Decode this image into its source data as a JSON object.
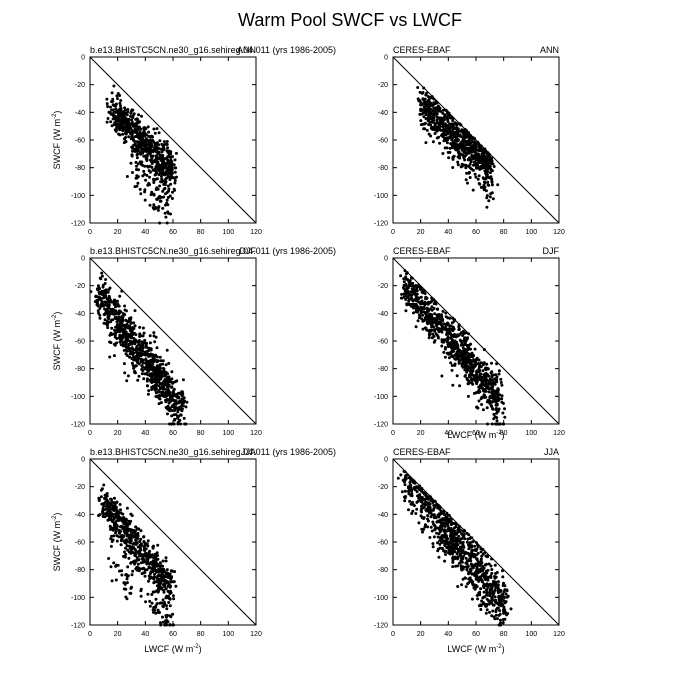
{
  "figure": {
    "title": "Warm Pool SWCF vs LWCF"
  },
  "chart_data": [
    {
      "type": "scatter",
      "column": 0,
      "row": 0,
      "left_title": "b.e13.BHISTC5CN.ne30_g16.sehireg.04.011 (yrs 1986-2005)",
      "right_title": "ANN",
      "xlabel": "",
      "ylabel": "SWCF (W m-2)",
      "xlim": [
        0,
        120
      ],
      "ylim": [
        -120,
        0
      ],
      "xticks": [
        0,
        20,
        40,
        60,
        80,
        100,
        120
      ],
      "yticks": [
        0,
        -20,
        -40,
        -60,
        -80,
        -100,
        -120
      ],
      "reference_line": [
        [
          0,
          0
        ],
        [
          120,
          -120
        ]
      ],
      "clusters": [
        {
          "x0": 16,
          "x1": 60,
          "ya": -39,
          "yb": -84,
          "spread": 7,
          "n": 650
        },
        {
          "x0": 30,
          "x1": 58,
          "ya": -78,
          "yb": -110,
          "spread": 8,
          "n": 90
        }
      ]
    },
    {
      "type": "scatter",
      "column": 1,
      "row": 0,
      "left_title": "CERES-EBAF",
      "right_title": "ANN",
      "xlabel": "",
      "ylabel": "",
      "xlim": [
        0,
        120
      ],
      "ylim": [
        -120,
        0
      ],
      "xticks": [
        0,
        20,
        40,
        60,
        80,
        100,
        120
      ],
      "yticks": [
        0,
        -20,
        -40,
        -60,
        -80,
        -100,
        -120
      ],
      "reference_line": [
        [
          0,
          0
        ],
        [
          120,
          -120
        ]
      ],
      "clusters": [
        {
          "x0": 20,
          "x1": 70,
          "ya": -34,
          "yb": -78,
          "spread": 7,
          "n": 600
        },
        {
          "x0": 40,
          "x1": 72,
          "ya": -55,
          "yb": -95,
          "spread": 9,
          "n": 120
        }
      ]
    },
    {
      "type": "scatter",
      "column": 0,
      "row": 1,
      "left_title": "b.e13.BHISTC5CN.ne30_g16.sehireg.04.011 (yrs 1986-2005)",
      "right_title": "DJF",
      "xlabel": "",
      "ylabel": "SWCF (W m-2)",
      "xlim": [
        0,
        120
      ],
      "ylim": [
        -120,
        0
      ],
      "xticks": [
        0,
        20,
        40,
        60,
        80,
        100,
        120
      ],
      "yticks": [
        0,
        -20,
        -40,
        -60,
        -80,
        -100,
        -120
      ],
      "reference_line": [
        [
          0,
          0
        ],
        [
          120,
          -120
        ]
      ],
      "clusters": [
        {
          "x0": 5,
          "x1": 68,
          "ya": -24,
          "yb": -112,
          "spread": 8,
          "n": 750
        },
        {
          "x0": 15,
          "x1": 55,
          "ya": -55,
          "yb": -90,
          "spread": 10,
          "n": 120
        }
      ]
    },
    {
      "type": "scatter",
      "column": 1,
      "row": 1,
      "left_title": "CERES-EBAF",
      "right_title": "DJF",
      "xlabel": "LWCF (W m-2)",
      "ylabel": "",
      "xlim": [
        0,
        120
      ],
      "ylim": [
        -120,
        0
      ],
      "xticks": [
        0,
        20,
        40,
        60,
        80,
        100,
        120
      ],
      "yticks": [
        0,
        -20,
        -40,
        -60,
        -80,
        -100,
        -120
      ],
      "reference_line": [
        [
          0,
          0
        ],
        [
          120,
          -120
        ]
      ],
      "clusters": [
        {
          "x0": 8,
          "x1": 78,
          "ya": -22,
          "yb": -100,
          "spread": 8,
          "n": 700
        },
        {
          "x0": 40,
          "x1": 78,
          "ya": -55,
          "yb": -115,
          "spread": 10,
          "n": 160
        }
      ]
    },
    {
      "type": "scatter",
      "column": 0,
      "row": 2,
      "left_title": "b.e13.BHISTC5CN.ne30_g16.sehireg.04.011 (yrs 1986-2005)",
      "right_title": "JJA",
      "xlabel": "LWCF (W m-2)",
      "ylabel": "SWCF (W m-2)",
      "xlim": [
        0,
        120
      ],
      "ylim": [
        -120,
        0
      ],
      "xticks": [
        0,
        20,
        40,
        60,
        80,
        100,
        120
      ],
      "yticks": [
        0,
        -20,
        -40,
        -60,
        -80,
        -100,
        -120
      ],
      "reference_line": [
        [
          0,
          0
        ],
        [
          120,
          -120
        ]
      ],
      "clusters": [
        {
          "x0": 8,
          "x1": 60,
          "ya": -30,
          "yb": -95,
          "spread": 6,
          "n": 520
        },
        {
          "x0": 15,
          "x1": 60,
          "ya": -65,
          "yb": -112,
          "spread": 12,
          "n": 160
        }
      ]
    },
    {
      "type": "scatter",
      "column": 1,
      "row": 2,
      "left_title": "CERES-EBAF",
      "right_title": "JJA",
      "xlabel": "LWCF (W m-2)",
      "ylabel": "",
      "xlim": [
        0,
        120
      ],
      "ylim": [
        -120,
        0
      ],
      "xticks": [
        0,
        20,
        40,
        60,
        80,
        100,
        120
      ],
      "yticks": [
        0,
        -20,
        -40,
        -60,
        -80,
        -100,
        -120
      ],
      "reference_line": [
        [
          0,
          0
        ],
        [
          120,
          -120
        ]
      ],
      "clusters": [
        {
          "x0": 8,
          "x1": 82,
          "ya": -12,
          "yb": -108,
          "spread": 9,
          "n": 650
        },
        {
          "x0": 30,
          "x1": 75,
          "ya": -45,
          "yb": -100,
          "spread": 12,
          "n": 200
        }
      ]
    }
  ]
}
